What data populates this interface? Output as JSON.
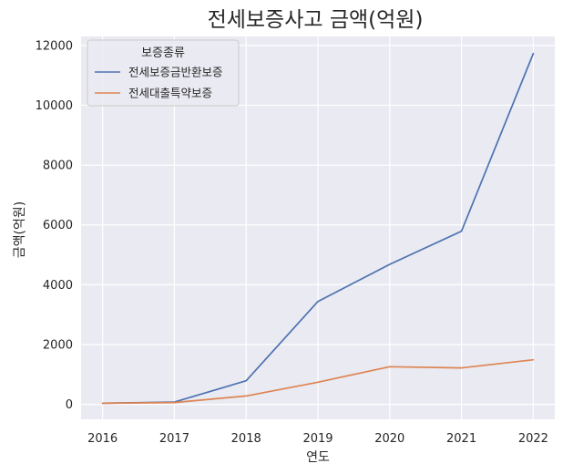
{
  "chart_data": {
    "type": "line",
    "title": "전세보증사고 금액(억원)",
    "xlabel": "연도",
    "ylabel": "금액(억원)",
    "x": [
      2016,
      2017,
      2018,
      2019,
      2020,
      2021,
      2022
    ],
    "xticks": [
      "2016",
      "2017",
      "2018",
      "2019",
      "2020",
      "2021",
      "2022"
    ],
    "xlim": [
      2015.7,
      2022.3
    ],
    "ylim": [
      -500,
      12300
    ],
    "yticks": [
      0,
      2000,
      4000,
      6000,
      8000,
      10000,
      12000
    ],
    "grid": true,
    "legend": {
      "title": "보증종류",
      "placement": "top-left"
    },
    "series": [
      {
        "name": "전세보증금반환보증",
        "color": "#4c72b0",
        "values": [
          35,
          75,
          790,
          3440,
          4680,
          5790,
          11730
        ]
      },
      {
        "name": "전세대출특약보증",
        "color": "#dd8452",
        "values": [
          35,
          60,
          280,
          740,
          1260,
          1220,
          1490
        ]
      }
    ]
  }
}
